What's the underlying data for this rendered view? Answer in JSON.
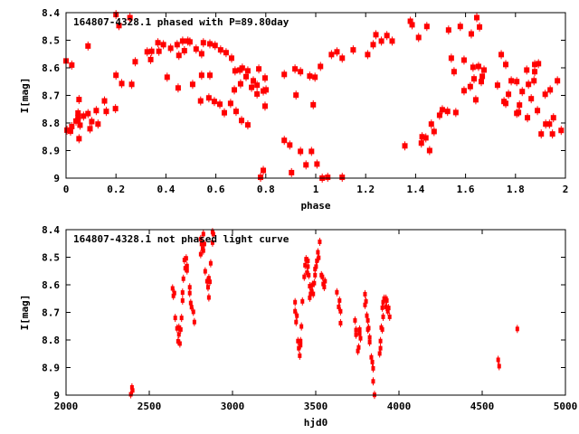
{
  "colors": {
    "marker": "#ff0000",
    "axis": "#000000"
  },
  "chart_data": [
    {
      "type": "scatter",
      "title": "164807-4328.1 phased with P=89.80day",
      "xlabel": "phase",
      "ylabel": "I[mag]",
      "xlim": [
        0,
        2
      ],
      "ylim": [
        9,
        8.4
      ],
      "y_inverted": true,
      "grid": false,
      "xticks": [
        0,
        0.2,
        0.4,
        0.6,
        0.8,
        1,
        1.2,
        1.4,
        1.6,
        1.8,
        2
      ],
      "xtick_labels": [
        "0",
        "0.2",
        "0.4",
        "0.6",
        "0.8",
        "1",
        "1.2",
        "1.4",
        "1.6",
        "1.8",
        "2"
      ],
      "yticks": [
        8.4,
        8.5,
        8.6,
        8.7,
        8.8,
        8.9,
        9
      ],
      "ytick_labels": [
        "8.4",
        "8.5",
        "8.6",
        "8.7",
        "8.8",
        "8.9",
        "9"
      ],
      "points": [
        [
          0.0,
          8.575
        ],
        [
          0.023,
          8.59
        ],
        [
          0.004,
          8.826
        ],
        [
          0.018,
          8.83
        ],
        [
          0.023,
          8.813
        ],
        [
          0.052,
          8.715
        ],
        [
          0.048,
          8.764
        ],
        [
          0.048,
          8.78
        ],
        [
          0.048,
          8.79
        ],
        [
          0.04,
          8.793
        ],
        [
          0.056,
          8.808
        ],
        [
          0.052,
          8.857
        ],
        [
          0.07,
          8.775
        ],
        [
          0.088,
          8.766
        ],
        [
          0.088,
          8.521
        ],
        [
          0.096,
          8.821
        ],
        [
          0.103,
          8.795
        ],
        [
          0.121,
          8.755
        ],
        [
          0.128,
          8.804
        ],
        [
          0.154,
          8.72
        ],
        [
          0.161,
          8.758
        ],
        [
          0.198,
          8.748
        ],
        [
          0.2,
          8.407
        ],
        [
          0.2,
          8.627
        ],
        [
          0.212,
          8.447
        ],
        [
          0.223,
          8.657
        ],
        [
          0.256,
          8.418
        ],
        [
          0.263,
          8.66
        ],
        [
          0.277,
          8.578
        ],
        [
          0.325,
          8.542
        ],
        [
          0.343,
          8.54
        ],
        [
          0.339,
          8.57
        ],
        [
          0.368,
          8.509
        ],
        [
          0.372,
          8.54
        ],
        [
          0.39,
          8.516
        ],
        [
          0.405,
          8.634
        ],
        [
          0.419,
          8.529
        ],
        [
          0.445,
          8.516
        ],
        [
          0.452,
          8.555
        ],
        [
          0.449,
          8.673
        ],
        [
          0.467,
          8.503
        ],
        [
          0.474,
          8.538
        ],
        [
          0.488,
          8.503
        ],
        [
          0.496,
          8.506
        ],
        [
          0.507,
          8.66
        ],
        [
          0.521,
          8.532
        ],
        [
          0.539,
          8.72
        ],
        [
          0.543,
          8.549
        ],
        [
          0.543,
          8.627
        ],
        [
          0.55,
          8.509
        ],
        [
          0.572,
          8.709
        ],
        [
          0.576,
          8.513
        ],
        [
          0.576,
          8.627
        ],
        [
          0.594,
          8.722
        ],
        [
          0.597,
          8.519
        ],
        [
          0.616,
          8.732
        ],
        [
          0.619,
          8.535
        ],
        [
          0.634,
          8.763
        ],
        [
          0.641,
          8.545
        ],
        [
          0.659,
          8.729
        ],
        [
          0.663,
          8.565
        ],
        [
          0.674,
          8.68
        ],
        [
          0.677,
          8.611
        ],
        [
          0.681,
          8.758
        ],
        [
          0.696,
          8.608
        ],
        [
          0.699,
          8.658
        ],
        [
          0.703,
          8.791
        ],
        [
          0.706,
          8.601
        ],
        [
          0.721,
          8.632
        ],
        [
          0.728,
          8.807
        ],
        [
          0.728,
          8.611
        ],
        [
          0.743,
          8.671
        ],
        [
          0.75,
          8.647
        ],
        [
          0.765,
          8.695
        ],
        [
          0.765,
          8.663
        ],
        [
          0.772,
          8.604
        ],
        [
          0.779,
          8.997
        ],
        [
          0.79,
          8.972
        ],
        [
          0.79,
          8.684
        ],
        [
          0.797,
          8.637
        ],
        [
          0.801,
          8.68
        ],
        [
          0.797,
          8.739
        ],
        [
          0.874,
          8.624
        ],
        [
          0.874,
          8.863
        ],
        [
          0.896,
          8.88
        ],
        [
          0.903,
          8.98
        ],
        [
          0.917,
          8.604
        ],
        [
          0.921,
          8.699
        ],
        [
          0.939,
          8.614
        ],
        [
          0.939,
          8.903
        ],
        [
          0.961,
          8.952
        ],
        [
          0.976,
          8.63
        ],
        [
          0.983,
          8.903
        ],
        [
          0.99,
          8.734
        ],
        [
          0.997,
          8.634
        ],
        [
          1.005,
          8.949
        ],
        [
          1.019,
          8.595
        ],
        [
          1.026,
          9.0
        ],
        [
          1.048,
          8.997
        ],
        [
          1.063,
          8.552
        ],
        [
          1.085,
          8.542
        ],
        [
          1.106,
          8.565
        ],
        [
          1.106,
          8.997
        ],
        [
          1.15,
          8.535
        ],
        [
          1.208,
          8.552
        ],
        [
          1.23,
          8.516
        ],
        [
          1.241,
          8.48
        ],
        [
          1.263,
          8.503
        ],
        [
          1.285,
          8.483
        ],
        [
          1.306,
          8.503
        ],
        [
          1.357,
          8.883
        ],
        [
          1.379,
          8.431
        ],
        [
          1.386,
          8.444
        ],
        [
          1.412,
          8.49
        ],
        [
          1.423,
          8.873
        ],
        [
          1.426,
          8.85
        ],
        [
          1.441,
          8.854
        ],
        [
          1.445,
          8.45
        ],
        [
          1.456,
          8.9
        ],
        [
          1.463,
          8.804
        ],
        [
          1.474,
          8.831
        ],
        [
          1.496,
          8.772
        ],
        [
          1.507,
          8.752
        ],
        [
          1.528,
          8.758
        ],
        [
          1.532,
          8.463
        ],
        [
          1.543,
          8.565
        ],
        [
          1.554,
          8.614
        ],
        [
          1.561,
          8.762
        ],
        [
          1.579,
          8.45
        ],
        [
          1.594,
          8.572
        ],
        [
          1.594,
          8.683
        ],
        [
          1.619,
          8.668
        ],
        [
          1.623,
          8.477
        ],
        [
          1.63,
          8.598
        ],
        [
          1.634,
          8.64
        ],
        [
          1.641,
          8.716
        ],
        [
          1.645,
          8.418
        ],
        [
          1.652,
          8.595
        ],
        [
          1.656,
          8.452
        ],
        [
          1.663,
          8.65
        ],
        [
          1.667,
          8.631
        ],
        [
          1.674,
          8.608
        ],
        [
          1.728,
          8.663
        ],
        [
          1.743,
          8.552
        ],
        [
          1.754,
          8.722
        ],
        [
          1.761,
          8.588
        ],
        [
          1.761,
          8.729
        ],
        [
          1.772,
          8.696
        ],
        [
          1.783,
          8.647
        ],
        [
          1.805,
          8.65
        ],
        [
          1.805,
          8.765
        ],
        [
          1.812,
          8.762
        ],
        [
          1.816,
          8.735
        ],
        [
          1.827,
          8.686
        ],
        [
          1.845,
          8.608
        ],
        [
          1.848,
          8.781
        ],
        [
          1.852,
          8.66
        ],
        [
          1.863,
          8.712
        ],
        [
          1.874,
          8.647
        ],
        [
          1.877,
          8.614
        ],
        [
          1.877,
          8.588
        ],
        [
          1.888,
          8.755
        ],
        [
          1.892,
          8.585
        ],
        [
          1.903,
          8.84
        ],
        [
          1.919,
          8.696
        ],
        [
          1.921,
          8.804
        ],
        [
          1.936,
          8.804
        ],
        [
          1.939,
          8.68
        ],
        [
          1.948,
          8.84
        ],
        [
          1.952,
          8.781
        ],
        [
          1.968,
          8.647
        ],
        [
          1.983,
          8.827
        ]
      ]
    },
    {
      "type": "scatter",
      "title": "164807-4328.1 not phased light curve",
      "xlabel": "hjd0",
      "ylabel": "I[mag]",
      "xlim": [
        2000,
        5000
      ],
      "ylim": [
        9,
        8.4
      ],
      "y_inverted": true,
      "grid": false,
      "xticks": [
        2000,
        2500,
        3000,
        3500,
        4000,
        4500,
        5000
      ],
      "xtick_labels": [
        "2000",
        "2500",
        "3000",
        "3500",
        "4000",
        "4500",
        "5000"
      ],
      "yticks": [
        8.4,
        8.5,
        8.6,
        8.7,
        8.8,
        8.9,
        9
      ],
      "ytick_labels": [
        "8.4",
        "8.5",
        "8.6",
        "8.7",
        "8.8",
        "8.9",
        "9"
      ],
      "points": [
        [
          2389,
          8.997
        ],
        [
          2396,
          8.972
        ],
        [
          2400,
          8.983
        ],
        [
          2640,
          8.613
        ],
        [
          2651,
          8.63
        ],
        [
          2645,
          8.64
        ],
        [
          2656,
          8.72
        ],
        [
          2667,
          8.758
        ],
        [
          2678,
          8.755
        ],
        [
          2689,
          8.762
        ],
        [
          2678,
          8.78
        ],
        [
          2673,
          8.805
        ],
        [
          2684,
          8.813
        ],
        [
          2694,
          8.72
        ],
        [
          2700,
          8.628
        ],
        [
          2700,
          8.657
        ],
        [
          2705,
          8.578
        ],
        [
          2711,
          8.51
        ],
        [
          2716,
          8.54
        ],
        [
          2722,
          8.504
        ],
        [
          2727,
          8.532
        ],
        [
          2727,
          8.548
        ],
        [
          2743,
          8.609
        ],
        [
          2743,
          8.63
        ],
        [
          2749,
          8.666
        ],
        [
          2754,
          8.681
        ],
        [
          2765,
          8.698
        ],
        [
          2771,
          8.735
        ],
        [
          2809,
          8.489
        ],
        [
          2809,
          8.434
        ],
        [
          2814,
          8.452
        ],
        [
          2820,
          8.469
        ],
        [
          2825,
          8.416
        ],
        [
          2831,
          8.452
        ],
        [
          2825,
          8.476
        ],
        [
          2836,
          8.551
        ],
        [
          2847,
          8.587
        ],
        [
          2853,
          8.609
        ],
        [
          2858,
          8.576
        ],
        [
          2864,
          8.589
        ],
        [
          2858,
          8.646
        ],
        [
          2869,
          8.522
        ],
        [
          2880,
          8.409
        ],
        [
          2885,
          8.416
        ],
        [
          2880,
          8.447
        ],
        [
          3376,
          8.663
        ],
        [
          3376,
          8.696
        ],
        [
          3382,
          8.735
        ],
        [
          3387,
          8.712
        ],
        [
          3393,
          8.804
        ],
        [
          3398,
          8.83
        ],
        [
          3404,
          8.857
        ],
        [
          3409,
          8.819
        ],
        [
          3409,
          8.804
        ],
        [
          3414,
          8.751
        ],
        [
          3420,
          8.66
        ],
        [
          3431,
          8.571
        ],
        [
          3436,
          8.529
        ],
        [
          3442,
          8.507
        ],
        [
          3447,
          8.556
        ],
        [
          3453,
          8.513
        ],
        [
          3453,
          8.534
        ],
        [
          3458,
          8.565
        ],
        [
          3464,
          8.605
        ],
        [
          3464,
          8.647
        ],
        [
          3469,
          8.633
        ],
        [
          3475,
          8.622
        ],
        [
          3480,
          8.6
        ],
        [
          3485,
          8.633
        ],
        [
          3491,
          8.594
        ],
        [
          3496,
          8.565
        ],
        [
          3496,
          8.543
        ],
        [
          3502,
          8.534
        ],
        [
          3507,
          8.513
        ],
        [
          3513,
          8.482
        ],
        [
          3518,
          8.502
        ],
        [
          3524,
          8.444
        ],
        [
          3534,
          8.565
        ],
        [
          3540,
          8.571
        ],
        [
          3545,
          8.597
        ],
        [
          3551,
          8.608
        ],
        [
          3556,
          8.587
        ],
        [
          3627,
          8.627
        ],
        [
          3643,
          8.657
        ],
        [
          3638,
          8.68
        ],
        [
          3649,
          8.696
        ],
        [
          3649,
          8.739
        ],
        [
          3736,
          8.729
        ],
        [
          3742,
          8.764
        ],
        [
          3742,
          8.781
        ],
        [
          3753,
          8.84
        ],
        [
          3758,
          8.827
        ],
        [
          3764,
          8.762
        ],
        [
          3764,
          8.777
        ],
        [
          3769,
          8.794
        ],
        [
          3796,
          8.634
        ],
        [
          3802,
          8.66
        ],
        [
          3796,
          8.673
        ],
        [
          3807,
          8.712
        ],
        [
          3813,
          8.729
        ],
        [
          3813,
          8.762
        ],
        [
          3818,
          8.757
        ],
        [
          3824,
          8.791
        ],
        [
          3824,
          8.808
        ],
        [
          3834,
          8.863
        ],
        [
          3840,
          8.88
        ],
        [
          3845,
          8.903
        ],
        [
          3845,
          8.95
        ],
        [
          3853,
          8.999
        ],
        [
          3889,
          8.804
        ],
        [
          3889,
          8.83
        ],
        [
          3884,
          8.849
        ],
        [
          3894,
          8.755
        ],
        [
          3900,
          8.762
        ],
        [
          3900,
          8.683
        ],
        [
          3905,
          8.716
        ],
        [
          3905,
          8.663
        ],
        [
          3911,
          8.65
        ],
        [
          3922,
          8.65
        ],
        [
          3922,
          8.68
        ],
        [
          3927,
          8.657
        ],
        [
          3933,
          8.696
        ],
        [
          3938,
          8.684
        ],
        [
          3944,
          8.716
        ],
        [
          4596,
          8.872
        ],
        [
          4602,
          8.895
        ],
        [
          4711,
          8.76
        ]
      ]
    }
  ]
}
